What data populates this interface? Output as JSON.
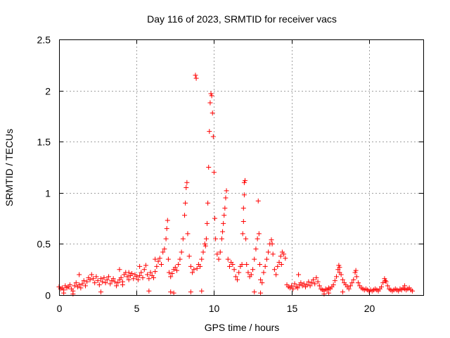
{
  "chart_data": {
    "type": "scatter",
    "title": "Day 116 of 2023, SRMTID for receiver vacs",
    "xlabel": "GPS time / hours",
    "ylabel": "SRMTID / TECUs",
    "xlim": [
      0,
      23.5
    ],
    "ylim": [
      0,
      2.5
    ],
    "grid": true,
    "marker": "+",
    "series_color": "#ff0000",
    "x_ticks": [
      0,
      5,
      10,
      15,
      20
    ],
    "x_tick_labels": [
      "0",
      "5",
      "10",
      "15",
      "20"
    ],
    "y_ticks": [
      0,
      0.5,
      1,
      1.5,
      2,
      2.5
    ],
    "y_tick_labels": [
      "0",
      "0.5",
      "1",
      "1.5",
      "2",
      "2.5"
    ],
    "series": [
      {
        "name": "SRMTID",
        "points": [
          [
            0.0,
            0.08
          ],
          [
            0.1,
            0.06
          ],
          [
            0.2,
            0.07
          ],
          [
            0.3,
            0.05
          ],
          [
            0.4,
            0.09
          ],
          [
            0.5,
            0.07
          ],
          [
            0.6,
            0.08
          ],
          [
            0.7,
            0.1
          ],
          [
            0.8,
            0.06
          ],
          [
            0.9,
            0.04
          ],
          [
            1.0,
            0.09
          ],
          [
            1.1,
            0.12
          ],
          [
            1.2,
            0.08
          ],
          [
            1.3,
            0.1
          ],
          [
            1.4,
            0.07
          ],
          [
            1.5,
            0.11
          ],
          [
            1.6,
            0.14
          ],
          [
            1.7,
            0.09
          ],
          [
            1.8,
            0.13
          ],
          [
            1.9,
            0.17
          ],
          [
            2.0,
            0.15
          ],
          [
            2.1,
            0.2
          ],
          [
            2.2,
            0.16
          ],
          [
            2.3,
            0.12
          ],
          [
            2.4,
            0.18
          ],
          [
            2.5,
            0.14
          ],
          [
            2.6,
            0.1
          ],
          [
            2.7,
            0.16
          ],
          [
            2.8,
            0.13
          ],
          [
            2.9,
            0.17
          ],
          [
            3.0,
            0.12
          ],
          [
            3.1,
            0.15
          ],
          [
            3.2,
            0.18
          ],
          [
            3.3,
            0.11
          ],
          [
            3.4,
            0.14
          ],
          [
            3.5,
            0.16
          ],
          [
            3.6,
            0.13
          ],
          [
            3.7,
            0.09
          ],
          [
            3.8,
            0.12
          ],
          [
            3.9,
            0.15
          ],
          [
            4.0,
            0.17
          ],
          [
            4.1,
            0.13
          ],
          [
            4.2,
            0.2
          ],
          [
            4.3,
            0.22
          ],
          [
            4.4,
            0.18
          ],
          [
            4.5,
            0.15
          ],
          [
            4.6,
            0.19
          ],
          [
            4.7,
            0.21
          ],
          [
            4.8,
            0.16
          ],
          [
            4.9,
            0.2
          ],
          [
            5.0,
            0.18
          ],
          [
            5.1,
            0.15
          ],
          [
            5.2,
            0.19
          ],
          [
            5.3,
            0.22
          ],
          [
            5.4,
            0.17
          ],
          [
            5.5,
            0.25
          ],
          [
            5.6,
            0.29
          ],
          [
            5.7,
            0.2
          ],
          [
            5.8,
            0.16
          ],
          [
            5.9,
            0.22
          ],
          [
            6.0,
            0.19
          ],
          [
            6.1,
            0.17
          ],
          [
            6.2,
            0.23
          ],
          [
            6.3,
            0.28
          ],
          [
            6.4,
            0.33
          ],
          [
            6.5,
            0.36
          ],
          [
            6.6,
            0.3
          ],
          [
            6.7,
            0.42
          ],
          [
            6.8,
            0.45
          ],
          [
            6.9,
            0.55
          ],
          [
            6.95,
            0.65
          ],
          [
            7.0,
            0.73
          ],
          [
            7.05,
            0.35
          ],
          [
            7.1,
            0.22
          ],
          [
            7.2,
            0.18
          ],
          [
            7.3,
            0.21
          ],
          [
            7.4,
            0.25
          ],
          [
            7.5,
            0.27
          ],
          [
            7.6,
            0.24
          ],
          [
            7.7,
            0.3
          ],
          [
            7.8,
            0.35
          ],
          [
            7.9,
            0.42
          ],
          [
            8.0,
            0.55
          ],
          [
            8.1,
            0.78
          ],
          [
            8.15,
            0.9
          ],
          [
            8.2,
            1.05
          ],
          [
            8.25,
            1.1
          ],
          [
            8.3,
            0.6
          ],
          [
            8.4,
            0.38
          ],
          [
            8.5,
            0.28
          ],
          [
            8.6,
            0.22
          ],
          [
            8.7,
            0.25
          ],
          [
            8.8,
            2.15
          ],
          [
            8.85,
            2.12
          ],
          [
            8.9,
            0.26
          ],
          [
            9.0,
            0.3
          ],
          [
            9.1,
            0.28
          ],
          [
            9.2,
            0.35
          ],
          [
            9.3,
            0.42
          ],
          [
            9.4,
            0.5
          ],
          [
            9.5,
            0.55
          ],
          [
            9.55,
            0.7
          ],
          [
            9.6,
            0.9
          ],
          [
            9.65,
            1.25
          ],
          [
            9.7,
            1.6
          ],
          [
            9.75,
            1.88
          ],
          [
            9.8,
            1.97
          ],
          [
            9.85,
            1.95
          ],
          [
            9.9,
            1.78
          ],
          [
            9.95,
            1.55
          ],
          [
            10.0,
            1.2
          ],
          [
            10.05,
            0.75
          ],
          [
            10.1,
            0.55
          ],
          [
            10.2,
            0.4
          ],
          [
            10.3,
            0.35
          ],
          [
            10.4,
            0.42
          ],
          [
            10.5,
            0.55
          ],
          [
            10.6,
            0.7
          ],
          [
            10.7,
            0.85
          ],
          [
            10.75,
            0.95
          ],
          [
            10.8,
            1.02
          ],
          [
            10.9,
            0.35
          ],
          [
            11.0,
            0.28
          ],
          [
            11.1,
            0.32
          ],
          [
            11.2,
            0.3
          ],
          [
            11.3,
            0.25
          ],
          [
            11.4,
            0.18
          ],
          [
            11.5,
            0.15
          ],
          [
            11.6,
            0.22
          ],
          [
            11.7,
            0.28
          ],
          [
            11.8,
            0.3
          ],
          [
            11.85,
            0.6
          ],
          [
            11.9,
            0.85
          ],
          [
            11.95,
            1.1
          ],
          [
            12.0,
            1.12
          ],
          [
            12.05,
            0.55
          ],
          [
            12.1,
            0.3
          ],
          [
            12.2,
            0.22
          ],
          [
            12.3,
            0.18
          ],
          [
            12.4,
            0.2
          ],
          [
            12.5,
            0.25
          ],
          [
            12.6,
            0.35
          ],
          [
            12.7,
            0.45
          ],
          [
            12.8,
            0.55
          ],
          [
            12.85,
            0.92
          ],
          [
            12.9,
            0.6
          ],
          [
            12.95,
            0.3
          ],
          [
            13.0,
            0.15
          ],
          [
            13.1,
            0.12
          ],
          [
            13.2,
            0.22
          ],
          [
            13.3,
            0.28
          ],
          [
            13.4,
            0.35
          ],
          [
            13.5,
            0.42
          ],
          [
            13.6,
            0.5
          ],
          [
            13.7,
            0.54
          ],
          [
            13.8,
            0.4
          ],
          [
            13.9,
            0.25
          ],
          [
            14.0,
            0.2
          ],
          [
            14.1,
            0.28
          ],
          [
            14.2,
            0.32
          ],
          [
            14.3,
            0.38
          ],
          [
            14.4,
            0.42
          ],
          [
            14.5,
            0.4
          ],
          [
            14.6,
            0.36
          ],
          [
            14.7,
            0.1
          ],
          [
            14.8,
            0.08
          ],
          [
            14.9,
            0.07
          ],
          [
            15.0,
            0.09
          ],
          [
            15.1,
            0.06
          ],
          [
            15.2,
            0.11
          ],
          [
            15.3,
            0.08
          ],
          [
            15.4,
            0.07
          ],
          [
            15.5,
            0.1
          ],
          [
            15.6,
            0.12
          ],
          [
            15.7,
            0.09
          ],
          [
            15.8,
            0.11
          ],
          [
            15.9,
            0.08
          ],
          [
            16.0,
            0.1
          ],
          [
            16.1,
            0.13
          ],
          [
            16.2,
            0.09
          ],
          [
            16.3,
            0.12
          ],
          [
            16.4,
            0.15
          ],
          [
            16.5,
            0.11
          ],
          [
            16.6,
            0.17
          ],
          [
            16.7,
            0.13
          ],
          [
            16.8,
            0.09
          ],
          [
            16.9,
            0.06
          ],
          [
            17.0,
            0.05
          ],
          [
            17.1,
            0.04
          ],
          [
            17.2,
            0.06
          ],
          [
            17.3,
            0.05
          ],
          [
            17.4,
            0.07
          ],
          [
            17.5,
            0.06
          ],
          [
            17.6,
            0.08
          ],
          [
            17.7,
            0.1
          ],
          [
            17.8,
            0.14
          ],
          [
            17.9,
            0.18
          ],
          [
            18.0,
            0.25
          ],
          [
            18.05,
            0.29
          ],
          [
            18.1,
            0.27
          ],
          [
            18.2,
            0.2
          ],
          [
            18.3,
            0.15
          ],
          [
            18.4,
            0.12
          ],
          [
            18.5,
            0.1
          ],
          [
            18.6,
            0.08
          ],
          [
            18.7,
            0.06
          ],
          [
            18.8,
            0.09
          ],
          [
            18.9,
            0.12
          ],
          [
            19.0,
            0.15
          ],
          [
            19.1,
            0.22
          ],
          [
            19.15,
            0.24
          ],
          [
            19.2,
            0.18
          ],
          [
            19.3,
            0.12
          ],
          [
            19.4,
            0.09
          ],
          [
            19.5,
            0.07
          ],
          [
            19.6,
            0.06
          ],
          [
            19.7,
            0.05
          ],
          [
            19.8,
            0.06
          ],
          [
            19.9,
            0.05
          ],
          [
            20.0,
            0.04
          ],
          [
            20.1,
            0.05
          ],
          [
            20.2,
            0.04
          ],
          [
            20.3,
            0.05
          ],
          [
            20.4,
            0.06
          ],
          [
            20.5,
            0.05
          ],
          [
            20.6,
            0.04
          ],
          [
            20.7,
            0.06
          ],
          [
            20.8,
            0.08
          ],
          [
            20.9,
            0.12
          ],
          [
            21.0,
            0.16
          ],
          [
            21.1,
            0.13
          ],
          [
            21.2,
            0.09
          ],
          [
            21.3,
            0.06
          ],
          [
            21.4,
            0.05
          ],
          [
            21.5,
            0.04
          ],
          [
            21.6,
            0.05
          ],
          [
            21.7,
            0.06
          ],
          [
            21.8,
            0.05
          ],
          [
            21.9,
            0.04
          ],
          [
            22.0,
            0.06
          ],
          [
            22.1,
            0.05
          ],
          [
            22.2,
            0.07
          ],
          [
            22.3,
            0.06
          ],
          [
            22.4,
            0.05
          ],
          [
            22.5,
            0.06
          ],
          [
            22.6,
            0.07
          ],
          [
            22.7,
            0.05
          ],
          [
            22.8,
            0.04
          ],
          [
            0.3,
            0.02
          ],
          [
            0.9,
            0.01
          ],
          [
            2.7,
            0.03
          ],
          [
            4.1,
            0.1
          ],
          [
            5.8,
            0.04
          ],
          [
            7.2,
            0.03
          ],
          [
            7.4,
            0.02
          ],
          [
            8.5,
            0.03
          ],
          [
            9.2,
            0.04
          ],
          [
            12.6,
            0.03
          ],
          [
            13.0,
            0.02
          ],
          [
            17.1,
            0.01
          ],
          [
            17.4,
            0.02
          ],
          [
            18.3,
            0.03
          ],
          [
            1.3,
            0.2
          ],
          [
            3.9,
            0.25
          ],
          [
            4.5,
            0.22
          ],
          [
            5.2,
            0.28
          ],
          [
            6.2,
            0.35
          ],
          [
            9.45,
            0.48
          ],
          [
            10.55,
            0.62
          ],
          [
            10.65,
            0.78
          ],
          [
            11.95,
            0.98
          ],
          [
            11.9,
            0.72
          ],
          [
            13.75,
            0.5
          ],
          [
            14.35,
            0.3
          ],
          [
            15.45,
            0.2
          ],
          [
            18.1,
            0.22
          ],
          [
            21.05,
            0.14
          ],
          [
            22.3,
            0.09
          ]
        ]
      }
    ]
  }
}
